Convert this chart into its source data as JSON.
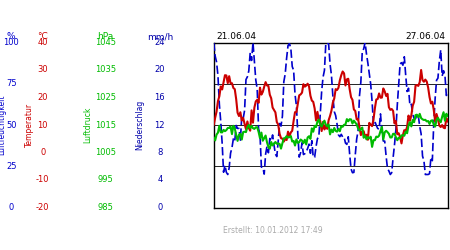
{
  "date_start": "21.06.04",
  "date_end": "27.06.04",
  "created": "Erstellt: 10.01.2012 17:49",
  "bg_color": "#ffffff",
  "plot_bg": "#ffffff",
  "bottom_bg": "#f0f0f0",
  "axis_labels": {
    "humidity": "Luftfeuchtigkeit",
    "temperature": "Temperatur",
    "pressure": "Luftdruck",
    "precipitation": "Niederschlag"
  },
  "units": [
    "%",
    "°C",
    "hPa",
    "mm/h"
  ],
  "hum_ticks": [
    0,
    25,
    50,
    75,
    100
  ],
  "temp_ticks": [
    -20,
    -10,
    0,
    10,
    20,
    30,
    40
  ],
  "pres_ticks": [
    985,
    995,
    1005,
    1015,
    1025,
    1035,
    1045
  ],
  "prec_ticks": [
    0,
    4,
    8,
    12,
    16,
    20,
    24
  ],
  "colors": {
    "humidity": "#0000cc",
    "temperature": "#cc0000",
    "pressure": "#00bb00",
    "precipitation": "#0000aa",
    "grid": "#000000",
    "created_text": "#aaaaaa"
  },
  "hum_range": [
    0,
    100
  ],
  "temp_range": [
    -20,
    40
  ],
  "pres_range": [
    985,
    1045
  ],
  "prec_range": [
    0,
    24
  ],
  "n_points": 168
}
